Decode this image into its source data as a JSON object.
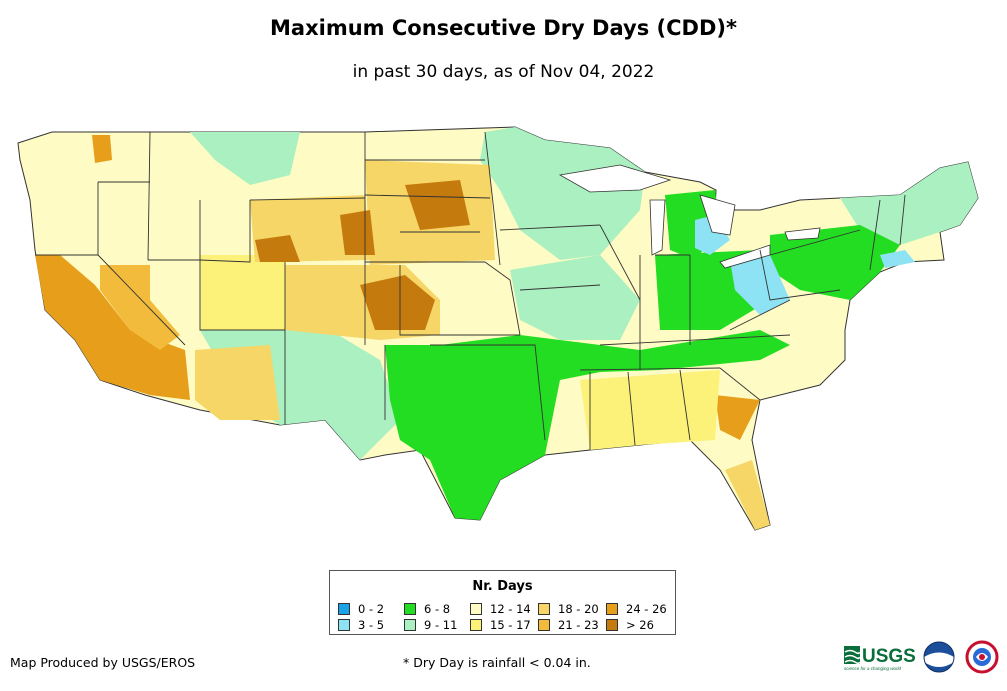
{
  "title": "Maximum Consecutive Dry Days (CDD)*",
  "subtitle": "in past 30 days, as of Nov 04, 2022",
  "legend": {
    "title": "Nr. Days",
    "items": [
      {
        "label": "0 - 2",
        "color": "#1aa3e8"
      },
      {
        "label": "3 - 5",
        "color": "#8de3f3"
      },
      {
        "label": "6 - 8",
        "color": "#22dd22"
      },
      {
        "label": "9 - 11",
        "color": "#aaf0c0"
      },
      {
        "label": "12 - 14",
        "color": "#fffbc4"
      },
      {
        "label": "15 - 17",
        "color": "#fcf27a"
      },
      {
        "label": "18 - 20",
        "color": "#f6d667"
      },
      {
        "label": "21 - 23",
        "color": "#f2bb3c"
      },
      {
        "label": "24 - 26",
        "color": "#e79e1a"
      },
      {
        "label": "> 26",
        "color": "#c57a0e"
      }
    ]
  },
  "credit": "Map Produced by USGS/EROS",
  "footnote": "* Dry Day is rainfall < 0.04 in.",
  "logos": {
    "usgs": "USGS",
    "usgs_tagline": "science for a changing world",
    "noaa": "noaa"
  }
}
